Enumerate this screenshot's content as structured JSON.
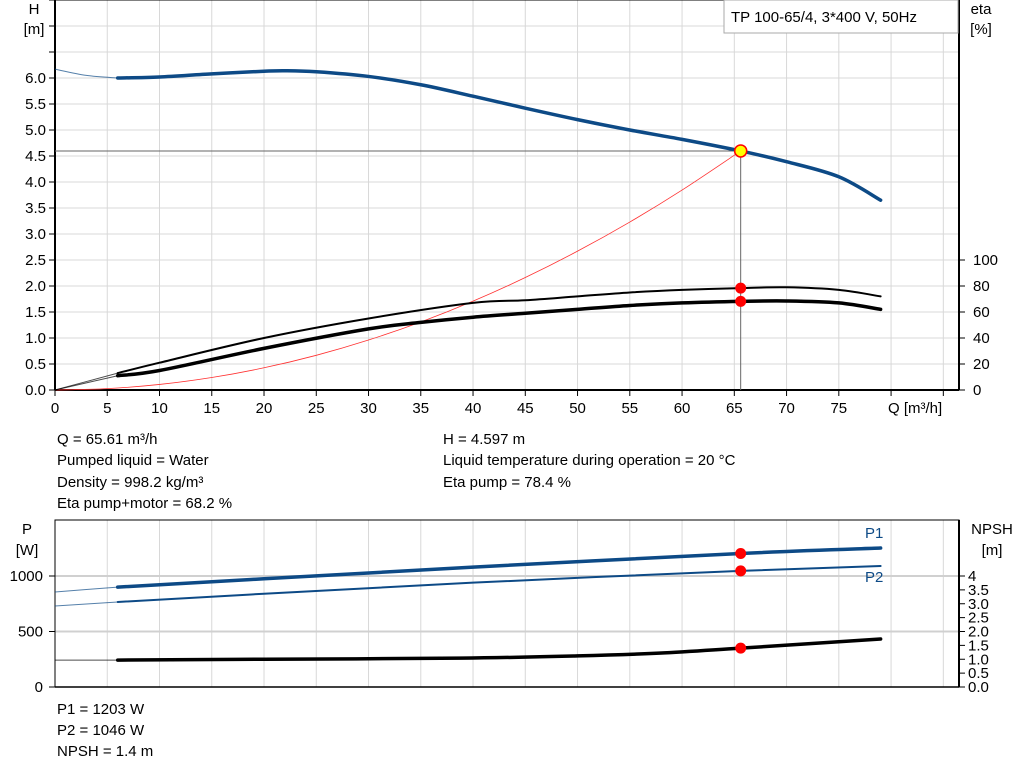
{
  "colors": {
    "head": "#0d4a86",
    "eta": "#000000",
    "system": "#ff3030",
    "point": "#ff0000",
    "duty_point_fill": "#ffff00",
    "power": "#0d4a86",
    "npsh": "#000000",
    "grid": "#d8d8d8"
  },
  "chart_data": [
    {
      "type": "line",
      "title": "TP 100-65/4, 3*400 V, 50Hz",
      "xlabel": "Q [m³/h]",
      "ylabel": "H\n[m]",
      "ylabel_top": "H",
      "ylabel_unit": "[m]",
      "y2label_top": "eta",
      "y2label_unit": "[%]",
      "x_axis_label": "Q [m³/h]",
      "xlim": [
        0,
        86.5
      ],
      "ylim": [
        0,
        7.5
      ],
      "y2lim": [
        0,
        100
      ],
      "grid": true,
      "x_ticks": [
        "0",
        "5",
        "10",
        "15",
        "20",
        "25",
        "30",
        "35",
        "40",
        "45",
        "50",
        "55",
        "60",
        "65",
        "70",
        "75"
      ],
      "y_ticks": [
        "0.0",
        "0.5",
        "1.0",
        "1.5",
        "2.0",
        "2.5",
        "3.0",
        "3.5",
        "4.0",
        "4.5",
        "5.0",
        "5.5",
        "6.0"
      ],
      "y2_ticks": [
        "0",
        "20",
        "40",
        "60",
        "80",
        "100"
      ],
      "series": [
        {
          "key": "head",
          "axis": "H",
          "x": [
            0,
            3,
            6,
            10,
            15,
            20,
            22,
            25,
            30,
            35,
            40,
            45,
            50,
            55,
            60,
            65.61,
            70,
            75,
            79
          ],
          "y": [
            6.17,
            6.05,
            6.0,
            6.02,
            6.08,
            6.13,
            6.14,
            6.12,
            6.03,
            5.87,
            5.65,
            5.42,
            5.2,
            5.0,
            4.82,
            4.597,
            4.39,
            4.1,
            3.65
          ]
        },
        {
          "key": "system",
          "axis": "H",
          "x": [
            0,
            5,
            10,
            15,
            20,
            25,
            30,
            35,
            40,
            45,
            50,
            55,
            60,
            65.61
          ],
          "y": [
            0,
            0.027,
            0.107,
            0.24,
            0.427,
            0.667,
            0.961,
            1.308,
            1.709,
            2.163,
            2.67,
            3.23,
            3.845,
            4.597
          ]
        },
        {
          "key": "eta_pump",
          "axis": "eta",
          "x": [
            0,
            6,
            10,
            20,
            30,
            40,
            45,
            50,
            55,
            60,
            65.61,
            70,
            75,
            79
          ],
          "y": [
            0,
            13,
            21,
            40,
            55,
            67,
            69,
            72,
            75,
            77,
            78.4,
            79,
            77,
            72
          ]
        },
        {
          "key": "eta_pump_motor",
          "axis": "eta",
          "x": [
            0,
            6,
            10,
            20,
            30,
            35,
            40,
            45,
            50,
            55,
            60,
            65.61,
            70,
            75,
            79
          ],
          "y": [
            0,
            11,
            15,
            32,
            47,
            52,
            56,
            59,
            62,
            65,
            67,
            68.2,
            68.5,
            67,
            62
          ]
        }
      ],
      "duty_point": {
        "q": 65.61,
        "h": 4.597,
        "eta_pump": 78.4,
        "eta_pump_motor": 68.2
      }
    },
    {
      "type": "line",
      "ylabel_top": "P",
      "ylabel_unit": "[W]",
      "y2label_top": "NPSH",
      "y2label_unit": "[m]",
      "xlim": [
        0,
        86.5
      ],
      "ylim": [
        0,
        1500
      ],
      "y2lim": [
        0,
        6
      ],
      "grid": true,
      "y_ticks": [
        "0",
        "500",
        "1000"
      ],
      "y2_ticks": [
        "0.0",
        "0.5",
        "1.0",
        "1.5",
        "2.0",
        "2.5",
        "3.0",
        "3.5",
        "4"
      ],
      "series": [
        {
          "key": "p1",
          "name": "P1",
          "axis": "P",
          "x": [
            0,
            6,
            20,
            40,
            65.61,
            79
          ],
          "y": [
            856,
            900,
            975,
            1080,
            1203,
            1252
          ]
        },
        {
          "key": "p2",
          "name": "P2",
          "axis": "P",
          "x": [
            0,
            6,
            20,
            40,
            65.61,
            79
          ],
          "y": [
            730,
            766,
            840,
            940,
            1046,
            1090
          ]
        },
        {
          "key": "npsh",
          "axis": "NPSH",
          "x": [
            0,
            6,
            20,
            38.8,
            50,
            57.8,
            65.61,
            79
          ],
          "y": [
            0.97,
            0.97,
            1.0,
            1.04,
            1.12,
            1.22,
            1.4,
            1.73
          ]
        }
      ],
      "duty_point": {
        "p1": 1203,
        "p2": 1046,
        "npsh": 1.4
      }
    }
  ],
  "info": {
    "q": "Q = 65.61 m³/h",
    "liquid": "Pumped liquid = Water",
    "density": "Density = 998.2 kg/m³",
    "eta_pm": "Eta pump+motor = 68.2 %",
    "h": "H = 4.597 m",
    "temp": "Liquid temperature during operation = 20 °C",
    "eta_pump": "Eta pump = 78.4 %"
  },
  "power_info": {
    "p1": "P1 = 1203 W",
    "p2": "P2 = 1046 W",
    "npsh": "NPSH = 1.4 m"
  }
}
